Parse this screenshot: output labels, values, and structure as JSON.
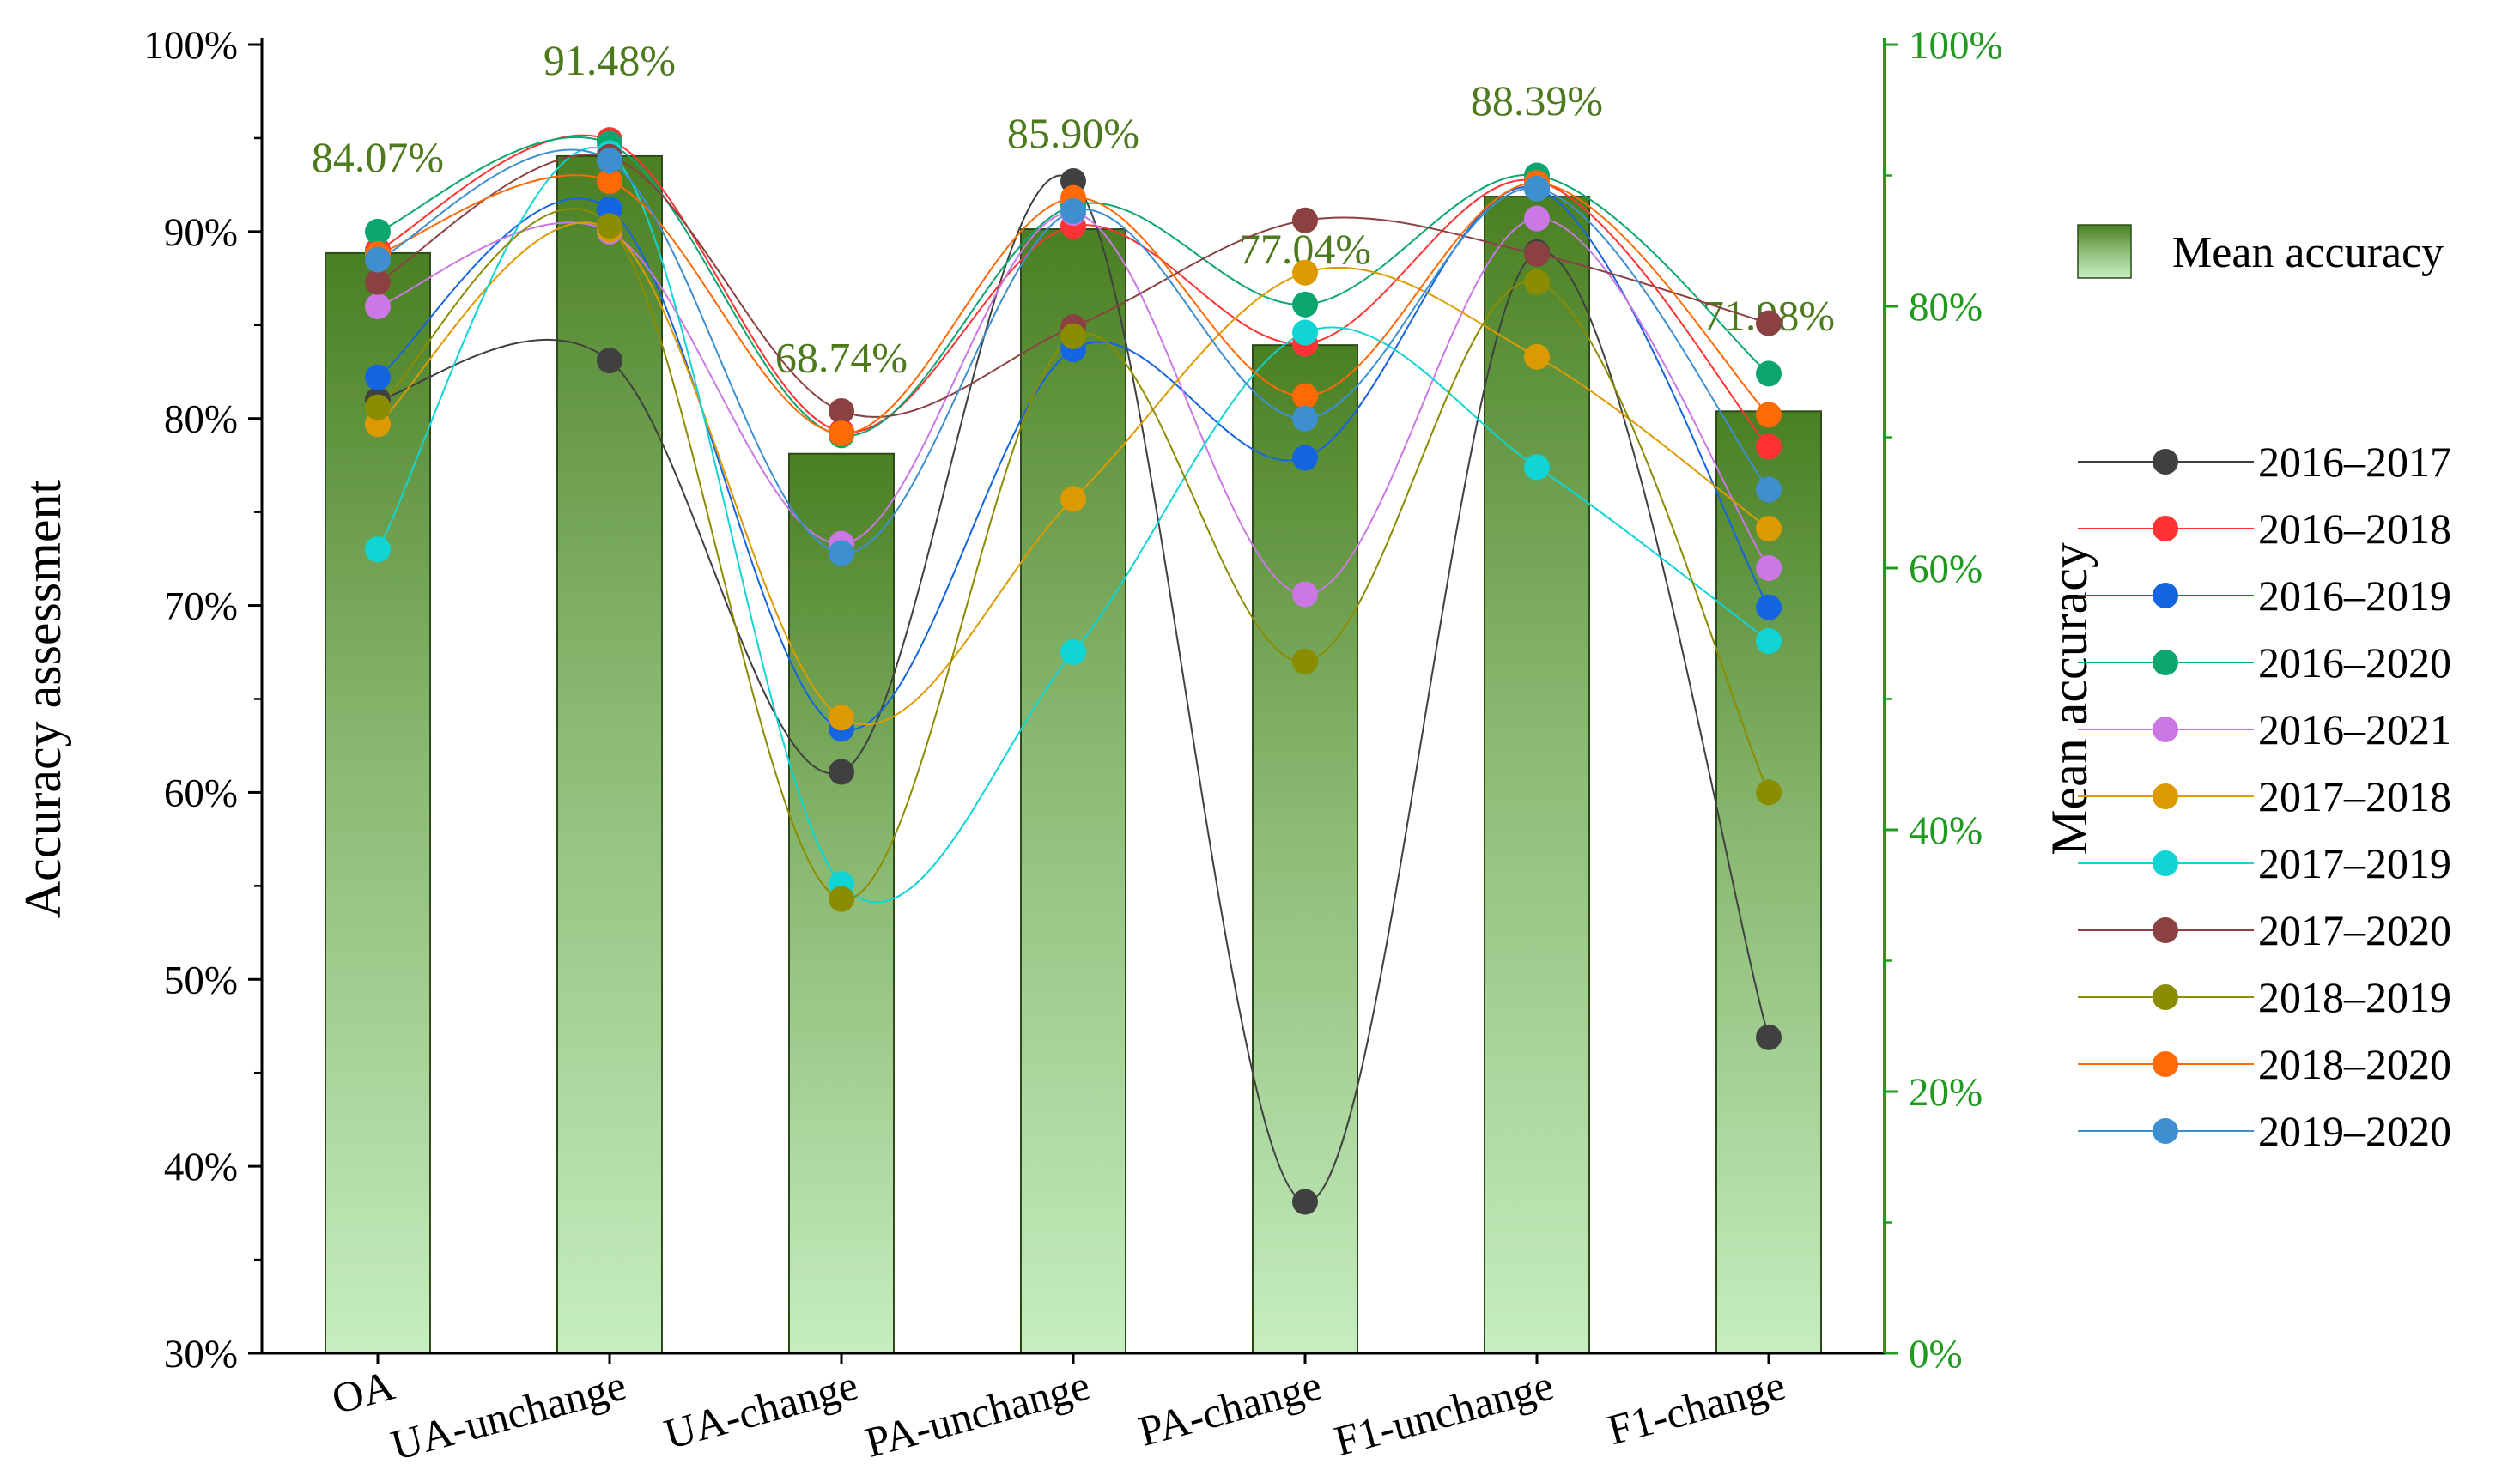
{
  "chart_data": {
    "type": "bar",
    "categories": [
      "OA",
      "UA-unchange",
      "UA-change",
      "PA-unchange",
      "PA-change",
      "F1-unchange",
      "F1-change"
    ],
    "bars": {
      "name": "Mean accuracy",
      "values": [
        84.07,
        91.48,
        68.74,
        85.9,
        77.04,
        88.39,
        71.98
      ],
      "labels": [
        "84.07%",
        "91.48%",
        "68.74%",
        "85.90%",
        "77.04%",
        "88.39%",
        "71.98%"
      ],
      "axis": "right"
    },
    "series": [
      {
        "name": "2016–2017",
        "color": "#404040",
        "values": [
          81.0,
          83.1,
          61.1,
          92.7,
          38.1,
          88.9,
          46.9
        ]
      },
      {
        "name": "2016–2018",
        "color": "#ff3333",
        "values": [
          89.0,
          94.9,
          79.3,
          90.3,
          84.0,
          92.7,
          78.5
        ]
      },
      {
        "name": "2016–2019",
        "color": "#1565e0",
        "values": [
          82.2,
          91.2,
          63.4,
          83.7,
          77.9,
          92.3,
          69.9
        ]
      },
      {
        "name": "2016–2020",
        "color": "#0aa66e",
        "values": [
          90.0,
          94.7,
          79.1,
          91.4,
          86.1,
          93.0,
          82.4
        ]
      },
      {
        "name": "2016–2021",
        "color": "#cc77e6",
        "values": [
          86.0,
          90.0,
          73.3,
          91.0,
          70.6,
          90.7,
          72.0
        ]
      },
      {
        "name": "2017–2018",
        "color": "#dd9a00",
        "values": [
          79.7,
          90.1,
          64.0,
          75.7,
          87.8,
          83.3,
          74.1
        ]
      },
      {
        "name": "2017–2019",
        "color": "#11d4d4",
        "values": [
          73.0,
          94.2,
          55.1,
          67.5,
          84.6,
          77.4,
          68.1
        ]
      },
      {
        "name": "2017–2020",
        "color": "#8b4141",
        "values": [
          87.3,
          94.0,
          80.4,
          84.9,
          90.6,
          88.8,
          85.1
        ]
      },
      {
        "name": "2018–2019",
        "color": "#8c8c00",
        "values": [
          80.6,
          90.3,
          54.3,
          84.4,
          67.0,
          87.3,
          60.0
        ]
      },
      {
        "name": "2018–2020",
        "color": "#ff6a06",
        "values": [
          88.8,
          92.7,
          79.2,
          91.8,
          81.2,
          92.6,
          80.2
        ]
      },
      {
        "name": "2019–2020",
        "color": "#3d8fd0",
        "values": [
          88.5,
          93.8,
          72.8,
          91.1,
          80.0,
          92.3,
          76.2
        ]
      }
    ],
    "left_axis": {
      "label": "Accuracy assessment",
      "ylim": [
        30,
        100
      ],
      "ticks": [
        "30%",
        "40%",
        "50%",
        "60%",
        "70%",
        "80%",
        "90%",
        "100%"
      ]
    },
    "right_axis": {
      "label": "Mean accuracy",
      "ylim": [
        0,
        100
      ],
      "ticks": [
        "0%",
        "20%",
        "40%",
        "60%",
        "80%",
        "100%"
      ],
      "color": "#1f9a1f"
    },
    "legend_placement": "right"
  }
}
